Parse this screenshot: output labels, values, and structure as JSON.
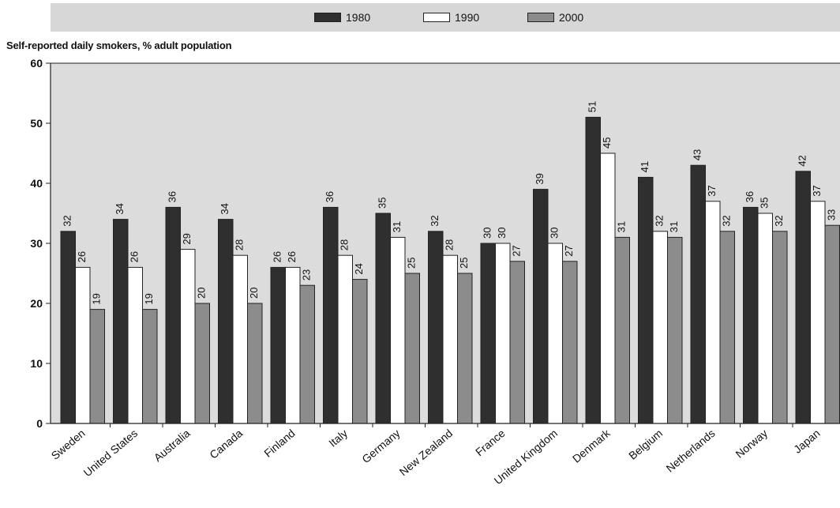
{
  "chart_data": {
    "type": "bar",
    "ylabel": "Self-reported daily smokers, % adult population",
    "ylim": [
      0,
      60
    ],
    "yticks": [
      0,
      10,
      20,
      30,
      40,
      50,
      60
    ],
    "categories": [
      "Sweden",
      "United States",
      "Australia",
      "Canada",
      "Finland",
      "Italy",
      "Germany",
      "New Zealand",
      "France",
      "United Kingdom",
      "Denmark",
      "Belgium",
      "Netherlands",
      "Norway",
      "Japan"
    ],
    "series": [
      {
        "name": "1980",
        "color": "#2f2f2f",
        "values": [
          32,
          34,
          36,
          34,
          26,
          36,
          35,
          32,
          30,
          39,
          51,
          41,
          43,
          36,
          42
        ],
        "labels": [
          "32",
          "34",
          "36",
          "34",
          "26",
          "36",
          "35",
          "32",
          "30",
          "39",
          "51",
          "41",
          "43",
          "36",
          "42"
        ]
      },
      {
        "name": "1990",
        "color": "#ffffff",
        "values": [
          26,
          26,
          29,
          28,
          26,
          28,
          31,
          28,
          30,
          30,
          45,
          32,
          37,
          35,
          37
        ],
        "labels": [
          "26",
          "26",
          "29",
          "28",
          "26",
          "28",
          "31",
          "28",
          "30",
          "30",
          "45",
          "32",
          "37",
          "35",
          "37"
        ]
      },
      {
        "name": "2000",
        "color": "#8c8c8c",
        "values": [
          19,
          19,
          20,
          20,
          23,
          24,
          25,
          25,
          27,
          27,
          31,
          31,
          32,
          32,
          33
        ],
        "labels": [
          "19",
          "19",
          "20",
          "20",
          "23",
          "24",
          "25",
          "25",
          "27",
          "27",
          "31",
          "31",
          "32",
          "32",
          "33"
        ]
      }
    ],
    "grid": false,
    "legend_position": "top"
  },
  "colors": {
    "plot_background": "#dcdcdc",
    "legend_background": "#d7d7d7"
  }
}
